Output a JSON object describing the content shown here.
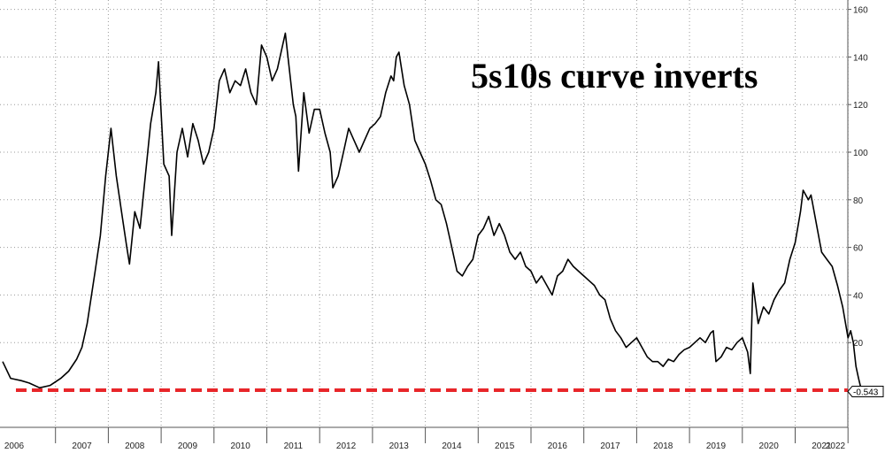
{
  "chart_data": {
    "type": "line",
    "title": "5s10s curve inverts",
    "xlabel": "",
    "ylabel": "",
    "x_tick_labels": [
      "2006",
      "2007",
      "2008",
      "2009",
      "2010",
      "2011",
      "2012",
      "2013",
      "2014",
      "2015",
      "2016",
      "2017",
      "2018",
      "2019",
      "2020",
      "2021",
      "2022"
    ],
    "y_ticks": [
      20,
      40,
      60,
      80,
      100,
      120,
      140,
      160
    ],
    "ylim": [
      -10,
      163
    ],
    "y_axis_side": "right",
    "grid": true,
    "last_value_label": "-0.543",
    "reference_line": {
      "y": 0,
      "color": "#e8262a",
      "style": "dashed"
    },
    "series": [
      {
        "color": "#000000",
        "points": [
          [
            2006.0,
            12
          ],
          [
            2006.15,
            5
          ],
          [
            2006.35,
            4
          ],
          [
            2006.5,
            3
          ],
          [
            2006.7,
            1
          ],
          [
            2006.9,
            2
          ],
          [
            2007.1,
            5
          ],
          [
            2007.25,
            8
          ],
          [
            2007.4,
            13
          ],
          [
            2007.5,
            18
          ],
          [
            2007.6,
            28
          ],
          [
            2007.75,
            50
          ],
          [
            2007.85,
            65
          ],
          [
            2007.95,
            90
          ],
          [
            2008.0,
            100
          ],
          [
            2008.05,
            110
          ],
          [
            2008.15,
            90
          ],
          [
            2008.25,
            75
          ],
          [
            2008.35,
            60
          ],
          [
            2008.4,
            53
          ],
          [
            2008.5,
            75
          ],
          [
            2008.6,
            68
          ],
          [
            2008.7,
            90
          ],
          [
            2008.8,
            112
          ],
          [
            2008.9,
            125
          ],
          [
            2008.95,
            138
          ],
          [
            2009.05,
            95
          ],
          [
            2009.15,
            90
          ],
          [
            2009.2,
            65
          ],
          [
            2009.3,
            100
          ],
          [
            2009.4,
            110
          ],
          [
            2009.5,
            98
          ],
          [
            2009.6,
            112
          ],
          [
            2009.7,
            105
          ],
          [
            2009.8,
            95
          ],
          [
            2009.9,
            100
          ],
          [
            2010.0,
            110
          ],
          [
            2010.1,
            130
          ],
          [
            2010.2,
            135
          ],
          [
            2010.3,
            125
          ],
          [
            2010.4,
            130
          ],
          [
            2010.5,
            128
          ],
          [
            2010.6,
            135
          ],
          [
            2010.7,
            125
          ],
          [
            2010.8,
            120
          ],
          [
            2010.9,
            145
          ],
          [
            2011.0,
            140
          ],
          [
            2011.1,
            130
          ],
          [
            2011.2,
            135
          ],
          [
            2011.3,
            145
          ],
          [
            2011.35,
            150
          ],
          [
            2011.4,
            140
          ],
          [
            2011.5,
            120
          ],
          [
            2011.55,
            115
          ],
          [
            2011.6,
            92
          ],
          [
            2011.7,
            125
          ],
          [
            2011.8,
            108
          ],
          [
            2011.9,
            118
          ],
          [
            2012.0,
            118
          ],
          [
            2012.1,
            108
          ],
          [
            2012.2,
            100
          ],
          [
            2012.25,
            85
          ],
          [
            2012.35,
            90
          ],
          [
            2012.45,
            100
          ],
          [
            2012.55,
            110
          ],
          [
            2012.65,
            105
          ],
          [
            2012.75,
            100
          ],
          [
            2012.85,
            105
          ],
          [
            2012.95,
            110
          ],
          [
            2013.05,
            112
          ],
          [
            2013.15,
            115
          ],
          [
            2013.25,
            125
          ],
          [
            2013.35,
            132
          ],
          [
            2013.4,
            130
          ],
          [
            2013.45,
            140
          ],
          [
            2013.5,
            142
          ],
          [
            2013.6,
            128
          ],
          [
            2013.7,
            120
          ],
          [
            2013.8,
            105
          ],
          [
            2013.9,
            100
          ],
          [
            2014.0,
            95
          ],
          [
            2014.1,
            88
          ],
          [
            2014.2,
            80
          ],
          [
            2014.3,
            78
          ],
          [
            2014.4,
            70
          ],
          [
            2014.5,
            60
          ],
          [
            2014.6,
            50
          ],
          [
            2014.7,
            48
          ],
          [
            2014.8,
            52
          ],
          [
            2014.9,
            55
          ],
          [
            2015.0,
            65
          ],
          [
            2015.1,
            68
          ],
          [
            2015.2,
            73
          ],
          [
            2015.3,
            65
          ],
          [
            2015.4,
            70
          ],
          [
            2015.5,
            65
          ],
          [
            2015.6,
            58
          ],
          [
            2015.7,
            55
          ],
          [
            2015.8,
            58
          ],
          [
            2015.9,
            52
          ],
          [
            2016.0,
            50
          ],
          [
            2016.1,
            45
          ],
          [
            2016.2,
            48
          ],
          [
            2016.3,
            44
          ],
          [
            2016.4,
            40
          ],
          [
            2016.5,
            48
          ],
          [
            2016.6,
            50
          ],
          [
            2016.7,
            55
          ],
          [
            2016.8,
            52
          ],
          [
            2016.9,
            50
          ],
          [
            2017.0,
            48
          ],
          [
            2017.1,
            46
          ],
          [
            2017.2,
            44
          ],
          [
            2017.3,
            40
          ],
          [
            2017.4,
            38
          ],
          [
            2017.5,
            30
          ],
          [
            2017.6,
            25
          ],
          [
            2017.7,
            22
          ],
          [
            2017.8,
            18
          ],
          [
            2017.9,
            20
          ],
          [
            2018.0,
            22
          ],
          [
            2018.1,
            18
          ],
          [
            2018.2,
            14
          ],
          [
            2018.3,
            12
          ],
          [
            2018.4,
            12
          ],
          [
            2018.5,
            10
          ],
          [
            2018.6,
            13
          ],
          [
            2018.7,
            12
          ],
          [
            2018.8,
            15
          ],
          [
            2018.9,
            17
          ],
          [
            2019.0,
            18
          ],
          [
            2019.1,
            20
          ],
          [
            2019.2,
            22
          ],
          [
            2019.3,
            20
          ],
          [
            2019.4,
            24
          ],
          [
            2019.45,
            25
          ],
          [
            2019.5,
            12
          ],
          [
            2019.6,
            14
          ],
          [
            2019.7,
            18
          ],
          [
            2019.8,
            17
          ],
          [
            2019.9,
            20
          ],
          [
            2020.0,
            22
          ],
          [
            2020.1,
            16
          ],
          [
            2020.15,
            7
          ],
          [
            2020.2,
            45
          ],
          [
            2020.3,
            28
          ],
          [
            2020.4,
            35
          ],
          [
            2020.5,
            32
          ],
          [
            2020.6,
            38
          ],
          [
            2020.7,
            42
          ],
          [
            2020.8,
            45
          ],
          [
            2020.9,
            55
          ],
          [
            2021.0,
            62
          ],
          [
            2021.1,
            75
          ],
          [
            2021.15,
            84
          ],
          [
            2021.25,
            80
          ],
          [
            2021.3,
            82
          ],
          [
            2021.4,
            70
          ],
          [
            2021.5,
            58
          ],
          [
            2021.6,
            55
          ],
          [
            2021.7,
            52
          ],
          [
            2021.8,
            44
          ],
          [
            2021.9,
            35
          ],
          [
            2022.0,
            22
          ],
          [
            2022.05,
            25
          ],
          [
            2022.1,
            20
          ],
          [
            2022.15,
            10
          ],
          [
            2022.2,
            5
          ],
          [
            2022.26,
            -0.543
          ]
        ]
      }
    ]
  }
}
